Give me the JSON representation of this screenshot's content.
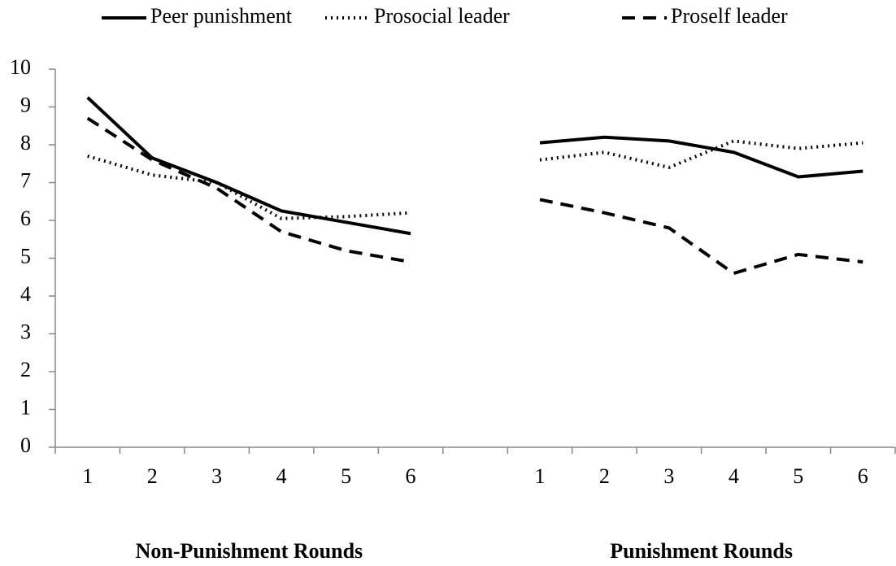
{
  "chart_data": {
    "type": "line",
    "categories": [
      "1",
      "2",
      "3",
      "4",
      "5",
      "6",
      null,
      "1",
      "2",
      "3",
      "4",
      "5",
      "6"
    ],
    "group_labels": [
      "Non-Punishment Rounds",
      "Punishment Rounds"
    ],
    "series": [
      {
        "name": "Peer punishment",
        "color": "#000000",
        "dash": "solid",
        "values": [
          9.25,
          7.65,
          7.0,
          6.25,
          5.95,
          5.65,
          null,
          8.05,
          8.2,
          8.1,
          7.8,
          7.15,
          7.3
        ]
      },
      {
        "name": "Prosocial leader",
        "color": "#000000",
        "dash": "dotted",
        "values": [
          7.7,
          7.2,
          7.0,
          6.05,
          6.1,
          6.2,
          null,
          7.6,
          7.8,
          7.4,
          8.1,
          7.9,
          8.05
        ]
      },
      {
        "name": "Proself leader",
        "color": "#000000",
        "dash": "dashed",
        "values": [
          8.7,
          7.6,
          6.85,
          5.7,
          5.2,
          4.9,
          null,
          6.55,
          6.2,
          5.8,
          4.6,
          5.1,
          4.9
        ]
      }
    ],
    "ylim": [
      0,
      10
    ],
    "yticks": [
      0,
      1,
      2,
      3,
      4,
      5,
      6,
      7,
      8,
      9,
      10
    ],
    "legend": "top"
  }
}
